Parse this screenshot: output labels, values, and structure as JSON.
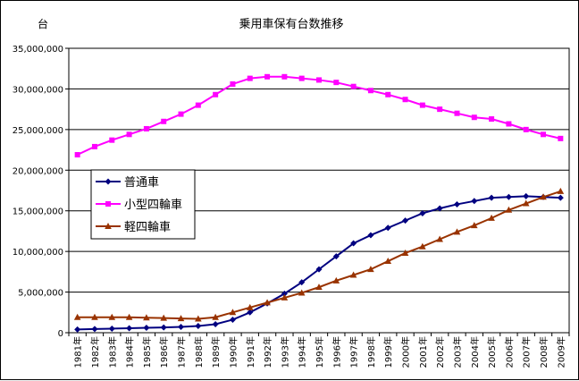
{
  "chart_data": {
    "type": "line",
    "title": "乗用車保有台数推移",
    "ylabel": "台",
    "xlabel": "",
    "ylim": [
      0,
      35000000
    ],
    "y_ticks": [
      0,
      5000000,
      10000000,
      15000000,
      20000000,
      25000000,
      30000000,
      35000000
    ],
    "y_tick_labels": [
      "0",
      "5,000,000",
      "10,000,000",
      "15,000,000",
      "20,000,000",
      "25,000,000",
      "30,000,000",
      "35,000,000"
    ],
    "categories": [
      "1981年",
      "1982年",
      "1983年",
      "1984年",
      "1985年",
      "1986年",
      "1987年",
      "1988年",
      "1989年",
      "1990年",
      "1991年",
      "1992年",
      "1993年",
      "1994年",
      "1995年",
      "1996年",
      "1997年",
      "1998年",
      "1999年",
      "2000年",
      "2001年",
      "2002年",
      "2003年",
      "2004年",
      "2005年",
      "2006年",
      "2007年",
      "2008年",
      "2009年"
    ],
    "grid": true,
    "legend_position": "left-middle",
    "series": [
      {
        "name": "普通車",
        "color": "#000080",
        "marker": "diamond",
        "values": [
          400000,
          450000,
          500000,
          550000,
          600000,
          650000,
          720000,
          820000,
          1050000,
          1600000,
          2500000,
          3600000,
          4800000,
          6200000,
          7800000,
          9400000,
          11000000,
          12000000,
          12900000,
          13800000,
          14700000,
          15300000,
          15800000,
          16200000,
          16600000,
          16700000,
          16800000,
          16700000,
          16600000
        ]
      },
      {
        "name": "小型四輪車",
        "color": "#ff00ff",
        "marker": "square",
        "values": [
          21900000,
          22900000,
          23700000,
          24400000,
          25100000,
          26000000,
          26900000,
          28000000,
          29300000,
          30600000,
          31300000,
          31500000,
          31500000,
          31300000,
          31100000,
          30800000,
          30300000,
          29800000,
          29300000,
          28700000,
          28000000,
          27500000,
          27000000,
          26500000,
          26300000,
          25700000,
          25000000,
          24400000,
          23900000
        ]
      },
      {
        "name": "軽四輪車",
        "color": "#993300",
        "marker": "triangle",
        "values": [
          1900000,
          1900000,
          1900000,
          1900000,
          1850000,
          1800000,
          1750000,
          1700000,
          1900000,
          2500000,
          3100000,
          3700000,
          4300000,
          4900000,
          5600000,
          6400000,
          7100000,
          7800000,
          8800000,
          9800000,
          10600000,
          11500000,
          12400000,
          13200000,
          14100000,
          15100000,
          15900000,
          16700000,
          17400000
        ]
      }
    ]
  }
}
